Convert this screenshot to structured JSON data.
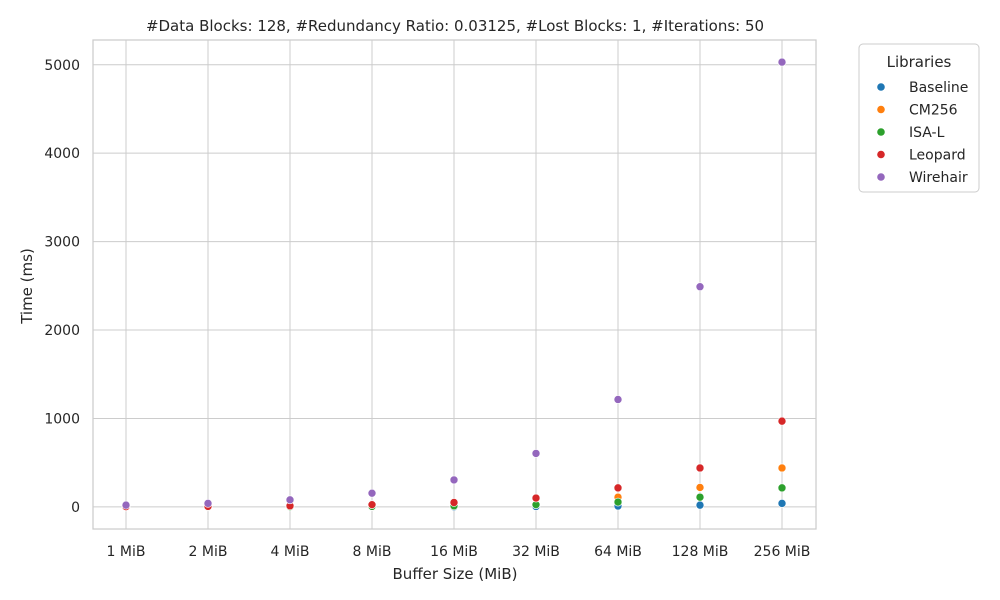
{
  "chart_data": {
    "type": "scatter",
    "title": "#Data Blocks: 128, #Redundancy Ratio: 0.03125, #Lost Blocks: 1, #Iterations: 50",
    "xlabel": "Buffer Size (MiB)",
    "ylabel": "Time (ms)",
    "categories": [
      "1 MiB",
      "2 MiB",
      "4 MiB",
      "8 MiB",
      "16 MiB",
      "32 MiB",
      "64 MiB",
      "128 MiB",
      "256 MiB"
    ],
    "ylim": [
      -250,
      5280
    ],
    "yticks": [
      0,
      1000,
      2000,
      3000,
      4000,
      5000
    ],
    "grid": true,
    "legend": {
      "title": "Libraries",
      "placement": "outside-top-right"
    },
    "series": [
      {
        "name": "Baseline",
        "color": "#1f77b4",
        "values": [
          0,
          0,
          0,
          1,
          2,
          5,
          10,
          20,
          40
        ]
      },
      {
        "name": "CM256",
        "color": "#ff7f0e",
        "values": [
          1,
          2,
          4,
          8,
          15,
          30,
          110,
          220,
          440
        ]
      },
      {
        "name": "ISA-L",
        "color": "#2ca02c",
        "values": [
          1,
          2,
          3,
          6,
          12,
          25,
          55,
          110,
          215
        ]
      },
      {
        "name": "Leopard",
        "color": "#d62728",
        "values": [
          3,
          6,
          12,
          25,
          50,
          100,
          215,
          440,
          970
        ]
      },
      {
        "name": "Wirehair",
        "color": "#9467bd",
        "values": [
          20,
          40,
          80,
          155,
          305,
          605,
          1215,
          2490,
          5030
        ]
      }
    ]
  }
}
